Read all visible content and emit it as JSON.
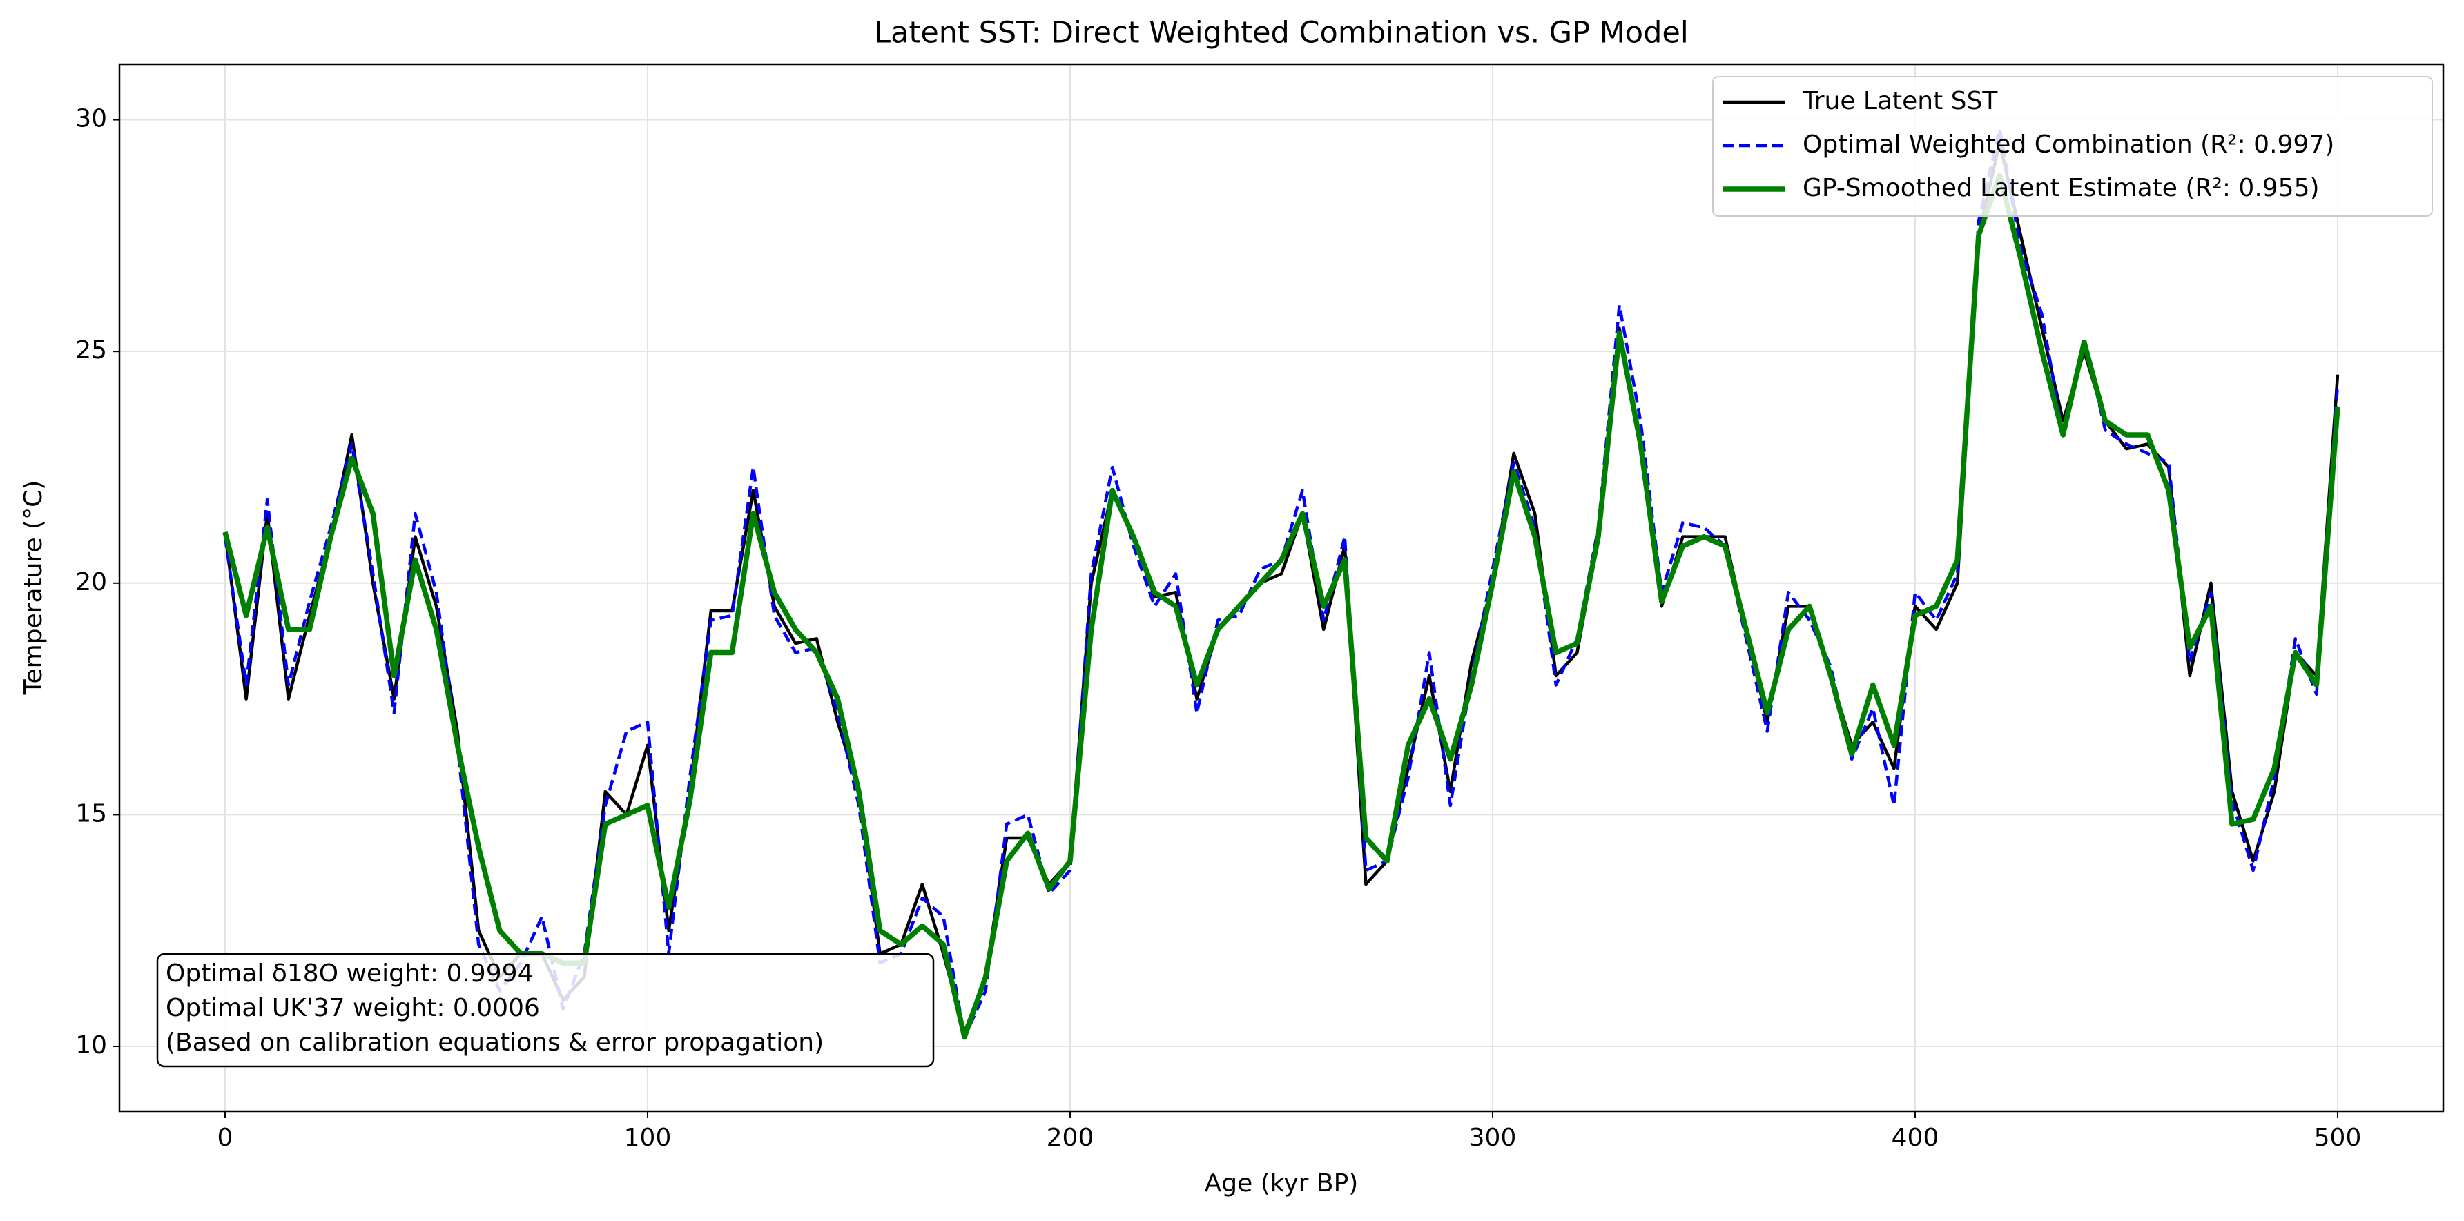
{
  "chart_data": {
    "type": "line",
    "title": "Latent SST: Direct Weighted Combination vs. GP Model",
    "xlabel": "Age (kyr BP)",
    "ylabel": "Temperature (°C)",
    "x": [
      0,
      5,
      10,
      15,
      20,
      25,
      30,
      35,
      40,
      45,
      50,
      55,
      60,
      65,
      70,
      75,
      80,
      85,
      90,
      95,
      100,
      105,
      110,
      115,
      120,
      125,
      130,
      135,
      140,
      145,
      150,
      155,
      160,
      165,
      170,
      175,
      180,
      185,
      190,
      195,
      200,
      205,
      210,
      215,
      220,
      225,
      230,
      235,
      240,
      245,
      250,
      255,
      260,
      265,
      270,
      275,
      280,
      285,
      290,
      295,
      300,
      305,
      310,
      315,
      320,
      325,
      330,
      335,
      340,
      345,
      350,
      355,
      360,
      365,
      370,
      375,
      380,
      385,
      390,
      395,
      400,
      405,
      410,
      415,
      420,
      425,
      430,
      435,
      440,
      445,
      450,
      455,
      460,
      465,
      470,
      475,
      480,
      485,
      490,
      495,
      500
    ],
    "series": [
      {
        "name": "True Latent SST",
        "color": "#000000",
        "linestyle": "solid",
        "linewidth": 1.5,
        "values": [
          21.1,
          17.5,
          21.5,
          17.5,
          19.3,
          21.0,
          23.2,
          20.0,
          17.5,
          21.0,
          19.5,
          16.8,
          12.5,
          11.5,
          12.0,
          12.0,
          11.0,
          11.5,
          15.5,
          15.0,
          16.5,
          12.5,
          15.5,
          19.4,
          19.4,
          22.0,
          19.5,
          18.7,
          18.8,
          17.0,
          15.5,
          12.0,
          12.2,
          13.5,
          12.0,
          10.3,
          11.5,
          14.5,
          14.5,
          13.5,
          14.0,
          20.0,
          22.0,
          21.0,
          19.7,
          19.8,
          17.5,
          19.0,
          19.5,
          20.0,
          20.2,
          21.5,
          19.0,
          20.8,
          13.5,
          14.0,
          16.0,
          18.0,
          15.5,
          18.3,
          20.0,
          22.8,
          21.5,
          18.0,
          18.5,
          21.0,
          25.5,
          23.0,
          19.5,
          21.0,
          21.0,
          21.0,
          19.0,
          17.0,
          19.5,
          19.5,
          18.0,
          16.5,
          17.0,
          16.0,
          19.5,
          19.0,
          20.0,
          27.5,
          29.5,
          27.5,
          25.5,
          23.5,
          25.0,
          23.5,
          22.9,
          23.0,
          22.5,
          18.0,
          20.0,
          15.5,
          14.0,
          15.5,
          18.5,
          18.0,
          24.5
        ]
      },
      {
        "name": "Optimal Weighted Combination (R²: 0.997)",
        "color": "#0000ff",
        "linestyle": "dashed",
        "linewidth": 1.5,
        "values": [
          21.0,
          17.8,
          21.8,
          17.8,
          19.6,
          21.2,
          23.0,
          20.2,
          17.2,
          21.5,
          19.8,
          16.5,
          12.2,
          11.2,
          11.8,
          12.8,
          10.8,
          12.0,
          15.2,
          16.8,
          17.0,
          12.0,
          15.8,
          19.2,
          19.3,
          22.5,
          19.3,
          18.5,
          18.6,
          17.2,
          15.2,
          11.8,
          12.0,
          13.2,
          12.8,
          10.2,
          11.2,
          14.8,
          15.0,
          13.3,
          13.8,
          20.2,
          22.5,
          20.8,
          19.5,
          20.2,
          17.2,
          19.2,
          19.3,
          20.3,
          20.5,
          22.0,
          19.2,
          21.0,
          13.8,
          14.0,
          15.8,
          18.5,
          15.2,
          18.0,
          20.3,
          22.6,
          21.2,
          17.8,
          18.8,
          21.2,
          26.0,
          23.5,
          19.8,
          21.3,
          21.2,
          20.8,
          18.8,
          16.8,
          19.8,
          19.2,
          18.2,
          16.2,
          17.3,
          15.2,
          19.8,
          19.2,
          20.2,
          27.8,
          29.8,
          27.2,
          25.8,
          23.2,
          25.3,
          23.3,
          23.0,
          22.8,
          22.6,
          18.3,
          19.8,
          15.3,
          13.8,
          15.8,
          18.8,
          17.6,
          24.3
        ]
      },
      {
        "name": "GP-Smoothed Latent Estimate (R²: 0.955)",
        "color": "#008000",
        "linestyle": "solid",
        "linewidth": 2.5,
        "values": [
          21.1,
          19.3,
          21.2,
          19.0,
          19.0,
          21.0,
          22.7,
          21.5,
          18.0,
          20.5,
          19.0,
          16.5,
          14.3,
          12.5,
          12.0,
          12.0,
          11.8,
          11.8,
          14.8,
          15.0,
          15.2,
          13.0,
          15.3,
          18.5,
          18.5,
          21.5,
          19.8,
          19.0,
          18.5,
          17.5,
          15.5,
          12.5,
          12.2,
          12.6,
          12.2,
          10.2,
          11.5,
          14.0,
          14.6,
          13.4,
          14.0,
          19.0,
          22.0,
          21.0,
          19.8,
          19.5,
          17.8,
          19.0,
          19.5,
          20.0,
          20.5,
          21.5,
          19.5,
          20.5,
          14.5,
          14.0,
          16.5,
          17.5,
          16.2,
          17.8,
          20.0,
          22.4,
          21.0,
          18.5,
          18.7,
          21.0,
          25.4,
          23.0,
          19.6,
          20.8,
          21.0,
          20.8,
          19.0,
          17.2,
          19.0,
          19.5,
          18.0,
          16.3,
          17.8,
          16.5,
          19.3,
          19.5,
          20.5,
          27.5,
          28.8,
          27.0,
          25.0,
          23.2,
          25.2,
          23.5,
          23.2,
          23.2,
          22.0,
          18.6,
          19.5,
          14.8,
          14.9,
          16.0,
          18.5,
          17.8,
          23.8
        ]
      }
    ],
    "xlim": [
      -25,
      525
    ],
    "xticks": [
      0,
      100,
      200,
      300,
      400,
      500
    ],
    "ylim": [
      8.6,
      31.2
    ],
    "yticks": [
      10,
      15,
      20,
      25,
      30
    ],
    "grid": true,
    "legend_loc": "upper right",
    "annotation": [
      "Optimal δ18O weight: 0.9994",
      "Optimal UK'37 weight: 0.0006",
      "(Based on calibration equations & error propagation)"
    ]
  }
}
